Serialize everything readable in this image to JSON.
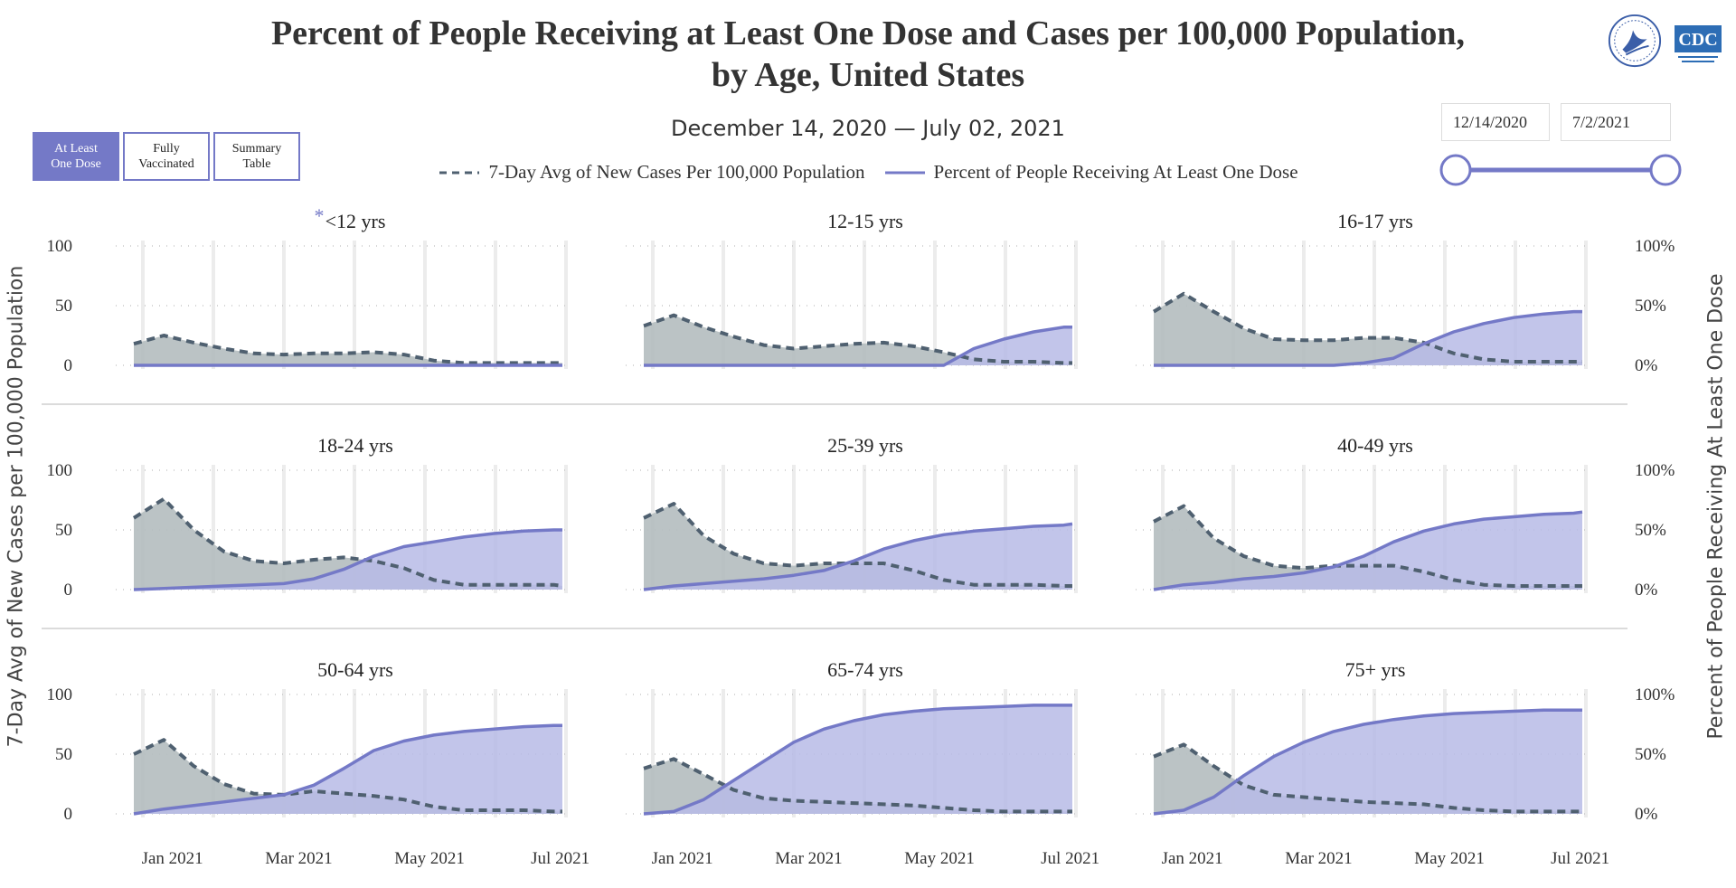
{
  "header": {
    "title_line1": "Percent of People Receiving at Least One Dose and Cases per 100,000 Population,",
    "title_line2": "by Age, United States",
    "subtitle": "December 14, 2020 — July 02, 2021"
  },
  "logos": {
    "cdc_text": "CDC"
  },
  "tabs": [
    {
      "label": "At Least\nOne Dose",
      "active": true
    },
    {
      "label": "Fully\nVaccinated",
      "active": false
    },
    {
      "label": "Summary\nTable",
      "active": false
    }
  ],
  "date_range": {
    "start": "12/14/2020",
    "end": "7/2/2021"
  },
  "colors": {
    "accent": "#7479c7",
    "cases_line": "#4f6070",
    "cases_fill": "#b4bcbf",
    "dose_fill": "#b7bbe6",
    "grid": "#d0d0d0"
  },
  "chart_data": {
    "type": "area",
    "x_tick_labels": [
      "Jan 2021",
      "Mar 2021",
      "May 2021",
      "Jul 2021"
    ],
    "x_ticks": [
      "2021-01-01",
      "2021-03-01",
      "2021-05-01",
      "2021-07-01"
    ],
    "x_range": [
      "2020-12-14",
      "2021-07-02"
    ],
    "x": [
      "2020-12-14",
      "2020-12-28",
      "2021-01-11",
      "2021-01-25",
      "2021-02-08",
      "2021-02-22",
      "2021-03-08",
      "2021-03-22",
      "2021-04-05",
      "2021-04-19",
      "2021-05-03",
      "2021-05-17",
      "2021-05-31",
      "2021-06-14",
      "2021-06-28",
      "2021-07-02"
    ],
    "left_axis": {
      "label": "7-Day Avg of New Cases per 100,000 Population",
      "ylim": [
        0,
        100
      ],
      "ticks": [
        "100",
        "50",
        "0"
      ]
    },
    "right_axis": {
      "label": "Percent of People Receiving At Least One Dose",
      "ylim": [
        0,
        100
      ],
      "ticks": [
        "100%",
        "50%",
        "0%"
      ]
    },
    "legend": {
      "position": "top-center",
      "items": [
        {
          "label": "7-Day Avg of New Cases Per 100,000 Population",
          "style": "dashed"
        },
        {
          "label": "Percent of People Receiving At Least One Dose",
          "style": "solid"
        }
      ]
    },
    "panels": [
      {
        "label": "<12 yrs",
        "star": "*",
        "cases": [
          18,
          25,
          19,
          14,
          10,
          9,
          10,
          10,
          11,
          9,
          4,
          2,
          2,
          2,
          2,
          2
        ],
        "dose": [
          0,
          0,
          0,
          0,
          0,
          0,
          0,
          0,
          0,
          0,
          0,
          0,
          0,
          0,
          0,
          0
        ]
      },
      {
        "label": "12-15 yrs",
        "star": "",
        "cases": [
          33,
          42,
          32,
          24,
          17,
          14,
          16,
          18,
          19,
          16,
          11,
          5,
          3,
          3,
          2,
          2
        ],
        "dose": [
          0,
          0,
          0,
          0,
          0,
          0,
          0,
          0,
          0,
          0,
          0,
          14,
          22,
          28,
          32,
          32
        ]
      },
      {
        "label": "16-17 yrs",
        "star": "",
        "cases": [
          45,
          60,
          45,
          31,
          22,
          21,
          21,
          23,
          23,
          19,
          10,
          5,
          3,
          3,
          3,
          3
        ],
        "dose": [
          0,
          0,
          0,
          0,
          0,
          0,
          0,
          2,
          6,
          18,
          28,
          35,
          40,
          43,
          45,
          45
        ]
      },
      {
        "label": "18-24 yrs",
        "star": "",
        "cases": [
          60,
          76,
          50,
          32,
          24,
          22,
          25,
          27,
          24,
          18,
          8,
          4,
          4,
          4,
          4,
          3
        ],
        "dose": [
          0,
          1,
          2,
          3,
          4,
          5,
          9,
          17,
          28,
          36,
          40,
          44,
          47,
          49,
          50,
          50
        ]
      },
      {
        "label": "25-39 yrs",
        "star": "",
        "cases": [
          60,
          72,
          45,
          30,
          22,
          20,
          22,
          22,
          22,
          16,
          8,
          4,
          4,
          4,
          3,
          3
        ],
        "dose": [
          0,
          3,
          5,
          7,
          9,
          12,
          16,
          24,
          34,
          41,
          46,
          49,
          51,
          53,
          54,
          55
        ]
      },
      {
        "label": "40-49 yrs",
        "star": "",
        "cases": [
          57,
          70,
          43,
          28,
          20,
          18,
          20,
          20,
          20,
          15,
          8,
          4,
          3,
          3,
          3,
          3
        ],
        "dose": [
          0,
          4,
          6,
          9,
          11,
          14,
          19,
          28,
          40,
          49,
          55,
          59,
          61,
          63,
          64,
          65
        ]
      },
      {
        "label": "50-64 yrs",
        "star": "",
        "cases": [
          50,
          62,
          40,
          25,
          17,
          16,
          19,
          17,
          15,
          12,
          6,
          3,
          3,
          3,
          2,
          2
        ],
        "dose": [
          0,
          4,
          7,
          10,
          13,
          16,
          24,
          38,
          53,
          61,
          66,
          69,
          71,
          73,
          74,
          74
        ]
      },
      {
        "label": "65-74 yrs",
        "star": "",
        "cases": [
          38,
          46,
          33,
          20,
          13,
          11,
          10,
          9,
          8,
          7,
          5,
          3,
          2,
          2,
          2,
          2
        ],
        "dose": [
          0,
          2,
          12,
          28,
          44,
          60,
          71,
          78,
          83,
          86,
          88,
          89,
          90,
          91,
          91,
          91
        ]
      },
      {
        "label": "75+ yrs",
        "star": "",
        "cases": [
          48,
          58,
          40,
          24,
          16,
          14,
          12,
          10,
          9,
          8,
          5,
          3,
          2,
          2,
          2,
          2
        ],
        "dose": [
          0,
          3,
          14,
          32,
          48,
          60,
          69,
          75,
          79,
          82,
          84,
          85,
          86,
          87,
          87,
          87
        ]
      }
    ]
  }
}
